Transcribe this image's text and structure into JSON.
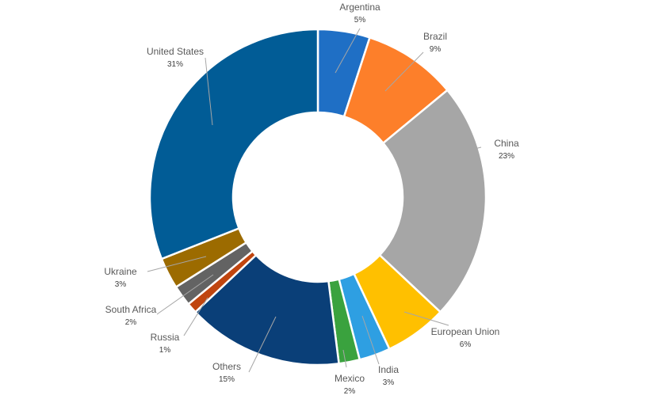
{
  "chart_data": {
    "type": "pie",
    "variant": "donut",
    "title": "",
    "slices": [
      {
        "label": "Argentina",
        "value": 5,
        "display": "5%",
        "color": "#1f6fc5"
      },
      {
        "label": "Brazil",
        "value": 9,
        "display": "9%",
        "color": "#fd7f2a"
      },
      {
        "label": "China",
        "value": 23,
        "display": "23%",
        "color": "#a6a6a6"
      },
      {
        "label": "European Union",
        "value": 6,
        "display": "6%",
        "color": "#ffc000"
      },
      {
        "label": "India",
        "value": 3,
        "display": "3%",
        "color": "#2e9fe2"
      },
      {
        "label": "Mexico",
        "value": 2,
        "display": "2%",
        "color": "#3aa23e"
      },
      {
        "label": "Others",
        "value": 15,
        "display": "15%",
        "color": "#0a3f78"
      },
      {
        "label": "Russia",
        "value": 1,
        "display": "1%",
        "color": "#c0450f"
      },
      {
        "label": "South Africa",
        "value": 2,
        "display": "2%",
        "color": "#636363"
      },
      {
        "label": "Ukraine",
        "value": 3,
        "display": "3%",
        "color": "#9c6b00"
      },
      {
        "label": "United States",
        "value": 31,
        "display": "31%",
        "color": "#015c96"
      }
    ],
    "legend": "none",
    "data_labels": "outside with leader lines"
  }
}
